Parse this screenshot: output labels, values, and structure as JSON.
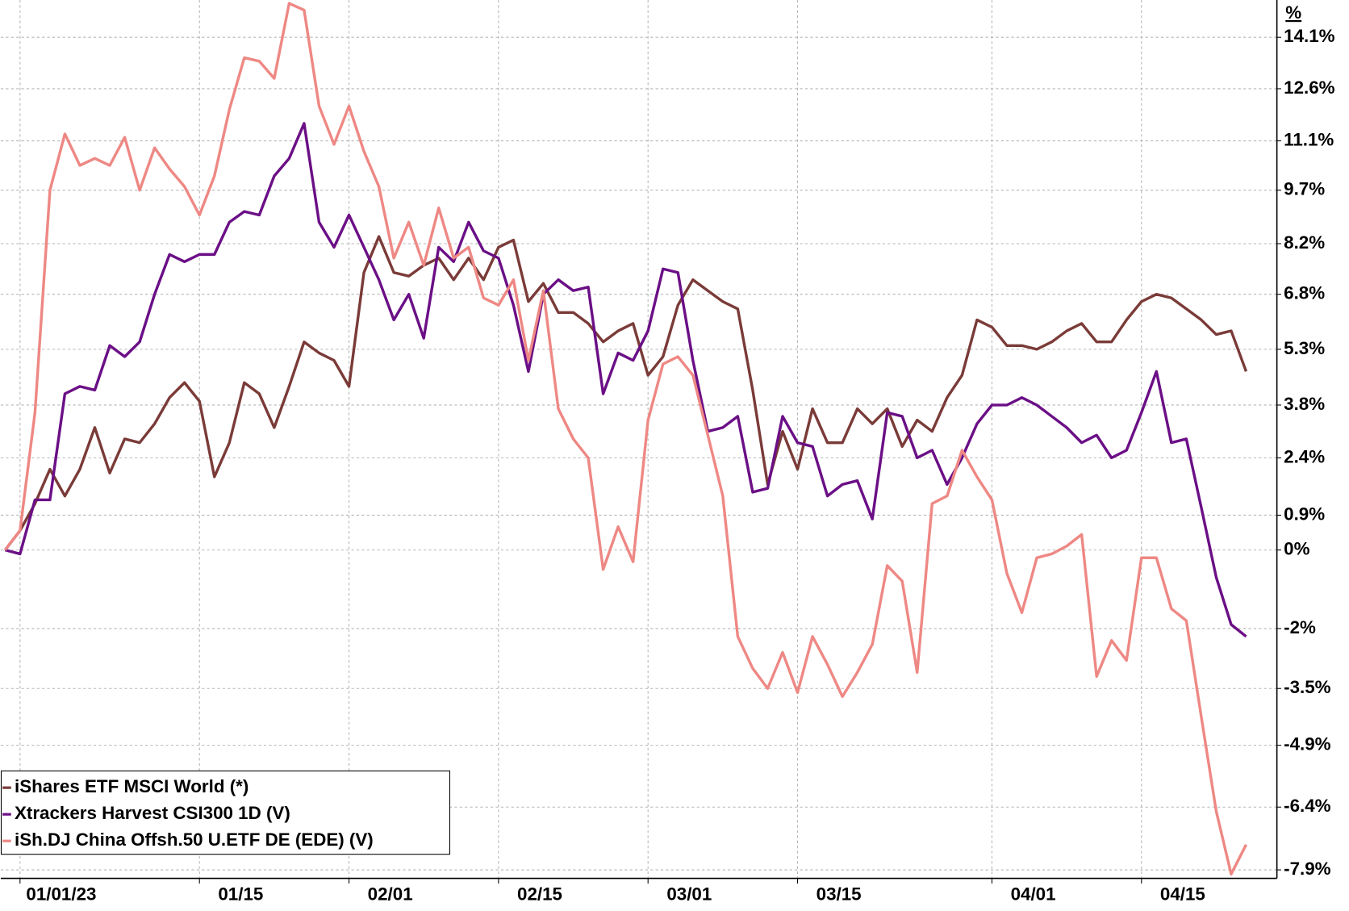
{
  "chart_data": {
    "type": "line",
    "y_label": "%",
    "log_scale": true,
    "grid": true,
    "legend": "lower left",
    "ylim": [
      -8.1,
      15.2
    ],
    "yticks": [
      {
        "value": 14.1,
        "label": "14.1%"
      },
      {
        "value": 12.6,
        "label": "12.6%"
      },
      {
        "value": 11.1,
        "label": "11.1%"
      },
      {
        "value": 9.7,
        "label": "9.7%"
      },
      {
        "value": 8.2,
        "label": "8.2%"
      },
      {
        "value": 6.8,
        "label": "6.8%"
      },
      {
        "value": 5.3,
        "label": "5.3%"
      },
      {
        "value": 3.8,
        "label": "3.8%"
      },
      {
        "value": 2.4,
        "label": "2.4%"
      },
      {
        "value": 0.9,
        "label": "0.9%"
      },
      {
        "value": 0,
        "label": "0%"
      },
      {
        "value": -2,
        "label": "-2%"
      },
      {
        "value": -3.5,
        "label": "-3.5%"
      },
      {
        "value": -4.9,
        "label": "-4.9%"
      },
      {
        "value": -6.4,
        "label": "-6.4%"
      },
      {
        "value": -7.9,
        "label": "-7.9%"
      }
    ],
    "categories": [
      null,
      "01/01/23",
      null,
      null,
      null,
      null,
      null,
      null,
      null,
      null,
      null,
      null,
      null,
      "01/15",
      null,
      null,
      null,
      null,
      null,
      null,
      null,
      null,
      null,
      "02/01",
      null,
      null,
      null,
      null,
      null,
      null,
      null,
      null,
      null,
      "02/15",
      null,
      null,
      null,
      null,
      null,
      null,
      null,
      null,
      null,
      "03/01",
      null,
      null,
      null,
      null,
      null,
      null,
      null,
      null,
      null,
      "03/15",
      null,
      null,
      null,
      null,
      null,
      null,
      null,
      null,
      null,
      null,
      null,
      null,
      "04/01",
      null,
      null,
      null,
      null,
      null,
      null,
      null,
      null,
      null,
      "04/15",
      null,
      null,
      null,
      null,
      null,
      null,
      null
    ],
    "series": [
      {
        "name": "iShares ETF MSCI World (*)",
        "color": "#7a3b38",
        "values": [
          0,
          0.5,
          1.2,
          2.1,
          1.4,
          2.1,
          3.2,
          2.0,
          2.9,
          2.8,
          3.3,
          4.0,
          4.4,
          3.9,
          1.9,
          2.8,
          4.4,
          4.1,
          3.2,
          4.3,
          5.5,
          5.2,
          5.0,
          4.3,
          7.4,
          8.4,
          7.4,
          7.3,
          7.6,
          7.8,
          7.2,
          7.8,
          7.2,
          8.1,
          8.3,
          6.6,
          7.1,
          6.3,
          6.3,
          6.0,
          5.5,
          5.8,
          6.0,
          4.6,
          5.1,
          6.5,
          7.2,
          6.9,
          6.6,
          6.4,
          4.2,
          1.7,
          3.1,
          2.1,
          3.7,
          2.8,
          2.8,
          3.7,
          3.3,
          3.7,
          2.7,
          3.4,
          3.1,
          4.0,
          4.6,
          6.1,
          5.9,
          5.4,
          5.4,
          5.3,
          5.5,
          5.8,
          6.0,
          5.5,
          5.5,
          6.1,
          6.6,
          6.8,
          6.7,
          6.4,
          6.1,
          5.7,
          5.8,
          4.7
        ]
      },
      {
        "name": "Xtrackers Harvest CSI300 1D (V)",
        "color": "#6b0f86",
        "values": [
          0,
          -0.1,
          1.3,
          1.3,
          4.1,
          4.3,
          4.2,
          5.4,
          5.1,
          5.5,
          6.8,
          7.9,
          7.7,
          7.9,
          7.9,
          8.8,
          9.1,
          9.0,
          10.1,
          10.6,
          11.6,
          8.8,
          8.1,
          9.0,
          8.1,
          7.2,
          6.1,
          6.8,
          5.6,
          8.1,
          7.7,
          8.8,
          8.0,
          7.8,
          6.5,
          4.7,
          6.8,
          7.2,
          6.9,
          7.0,
          4.1,
          5.2,
          5.0,
          5.8,
          7.5,
          7.4,
          5.0,
          3.1,
          3.2,
          3.5,
          1.5,
          1.6,
          3.5,
          2.8,
          2.7,
          1.4,
          1.7,
          1.8,
          0.8,
          3.6,
          3.5,
          2.4,
          2.6,
          1.7,
          2.4,
          3.3,
          3.8,
          3.8,
          4.0,
          3.8,
          3.5,
          3.2,
          2.8,
          3.0,
          2.4,
          2.6,
          3.6,
          4.7,
          2.8,
          2.9,
          1.1,
          -0.7,
          -1.9,
          -2.2
        ]
      },
      {
        "name": "iSh.DJ China Offsh.50 U.ETF DE (EDE) (V)",
        "color": "#ee8884",
        "values": [
          0,
          0.5,
          3.6,
          9.7,
          11.3,
          10.4,
          10.6,
          10.4,
          11.2,
          9.7,
          10.9,
          10.3,
          9.8,
          9.0,
          10.1,
          12.0,
          13.5,
          13.4,
          12.9,
          15.1,
          14.9,
          12.1,
          11.0,
          12.1,
          10.8,
          9.8,
          7.8,
          8.8,
          7.6,
          9.2,
          7.8,
          8.1,
          6.7,
          6.5,
          7.2,
          5.0,
          6.9,
          3.7,
          2.9,
          2.4,
          -0.5,
          0.6,
          -0.3,
          3.4,
          4.9,
          5.1,
          4.6,
          3.0,
          1.4,
          -2.2,
          -3.0,
          -3.5,
          -2.6,
          -3.6,
          -2.2,
          -2.9,
          -3.7,
          -3.1,
          -2.4,
          -0.4,
          -0.8,
          -3.1,
          1.2,
          1.4,
          2.6,
          1.9,
          1.3,
          -0.6,
          -1.6,
          -0.2,
          -0.1,
          0.1,
          0.4,
          -3.2,
          -2.3,
          -2.8,
          -0.2,
          -0.2,
          -1.5,
          -1.8,
          -4.2,
          -6.5,
          -8.0,
          -7.3
        ]
      }
    ]
  }
}
